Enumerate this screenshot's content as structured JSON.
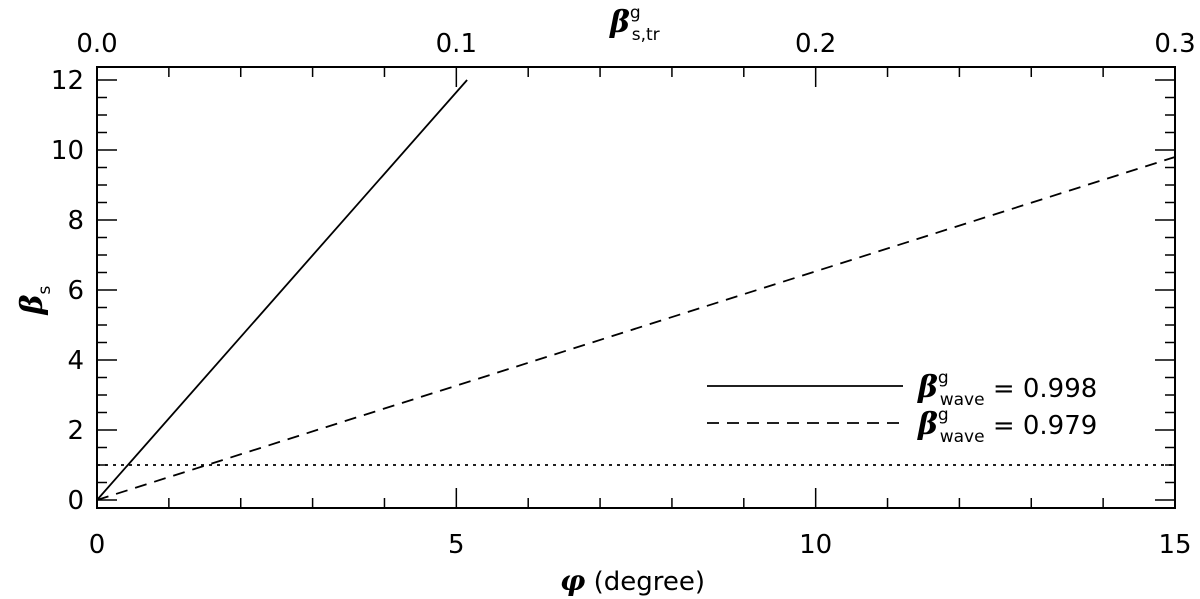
{
  "chart_data": {
    "type": "line",
    "xlabel": "φ (degree)",
    "ylabel": "βs",
    "top_xlabel": "β g s,tr",
    "xlim": [
      0,
      15
    ],
    "ylim": [
      0,
      12
    ],
    "top_xlim": [
      0,
      0.3
    ],
    "x_ticks": [
      "0",
      "5",
      "10",
      "15"
    ],
    "y_ticks": [
      "0",
      "2",
      "4",
      "6",
      "8",
      "10",
      "12"
    ],
    "top_x_ticks": [
      "0.0",
      "0.1",
      "0.2",
      "0.3"
    ],
    "legend_placement": "lower-right",
    "series": [
      {
        "name": "β g wave = 0.998",
        "style": "solid",
        "color": "#000000",
        "x": [
          0,
          5.15
        ],
        "y": [
          0,
          12
        ]
      },
      {
        "name": "β g wave = 0.979",
        "style": "dashed",
        "color": "#000000",
        "x": [
          0,
          15
        ],
        "y": [
          0,
          9.8
        ]
      },
      {
        "style": "dotted",
        "color": "#000000",
        "x": [
          0,
          15
        ],
        "y": [
          1,
          1
        ]
      }
    ],
    "legend": [
      {
        "greek": "β",
        "sup": "g",
        "sub": "wave",
        "text": " = 0.998",
        "style": "solid"
      },
      {
        "greek": "β",
        "sup": "g",
        "sub": "wave",
        "text": " = 0.979",
        "style": "dashed"
      }
    ],
    "axis_titles": {
      "x": {
        "greek": "φ",
        "text": " (degree)"
      },
      "y": {
        "greek": "β",
        "sub": "s"
      },
      "top": {
        "greek": "β",
        "sup": "g",
        "sub": "s,tr"
      }
    }
  }
}
